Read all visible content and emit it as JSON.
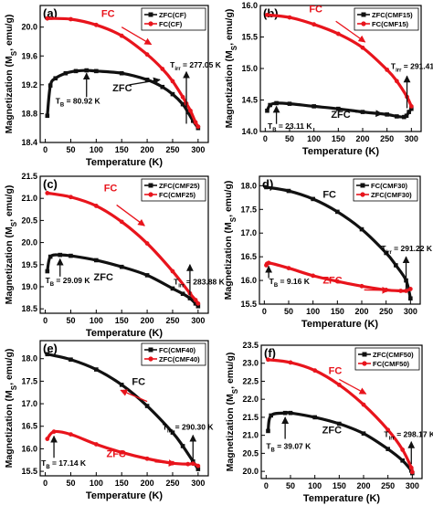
{
  "colors": {
    "zfc": "#111111",
    "fc": "#e8141c",
    "axis": "#000000"
  },
  "chart_data": [
    {
      "type": "scatter",
      "panel_label": "(a)",
      "xlabel": "Temperature (K)",
      "ylabel": "Magnetization (M_S, emu/g)",
      "ylabel_parts": {
        "pre": "Magnetization (M",
        "sub": "S",
        "post": ", emu/g)"
      },
      "xlim": [
        -10,
        320
      ],
      "ylim": [
        18.4,
        20.3
      ],
      "xticks": [
        0,
        50,
        100,
        150,
        200,
        250,
        300
      ],
      "yticks": [
        18.4,
        18.8,
        19.2,
        19.6,
        20.0
      ],
      "legend": {
        "position": "top-right",
        "entries": [
          {
            "series": "zfc",
            "label": "ZFC(CF)"
          },
          {
            "series": "fc",
            "label": "FC(CF)"
          }
        ]
      },
      "series": [
        {
          "name": "ZFC(CF)",
          "key": "zfc",
          "x": [
            4,
            10,
            20,
            40,
            60,
            81,
            100,
            150,
            200,
            230,
            250,
            270,
            280,
            290,
            300
          ],
          "y": [
            18.77,
            19.19,
            19.29,
            19.36,
            19.39,
            19.4,
            19.39,
            19.36,
            19.27,
            19.17,
            19.07,
            18.93,
            18.82,
            18.7,
            18.6
          ]
        },
        {
          "name": "FC(CF)",
          "key": "fc",
          "x": [
            4,
            50,
            100,
            150,
            200,
            230,
            250,
            270,
            277,
            285,
            295,
            300
          ],
          "y": [
            20.12,
            20.11,
            20.03,
            19.88,
            19.62,
            19.42,
            19.25,
            19.03,
            18.94,
            18.84,
            18.68,
            18.62
          ]
        }
      ],
      "annotations": [
        {
          "text": "FC",
          "color": "fc",
          "x": 110,
          "y": 20.14
        },
        {
          "text": "ZFC",
          "color": "zfc",
          "x": 132,
          "y": 19.11
        },
        {
          "text": "T_B = 80.92 K",
          "parts": [
            "T",
            "B",
            " = 80.92 K"
          ],
          "x": 20,
          "y": 18.94
        },
        {
          "text": "T_irr = 277.05 K",
          "parts": [
            "T",
            "irr",
            " = 277.05 K"
          ],
          "x": 245,
          "y": 19.44
        }
      ],
      "arrows": [
        {
          "color": "zfc",
          "from": [
            81,
            19.03
          ],
          "to": [
            81,
            19.36
          ]
        },
        {
          "color": "zfc",
          "from": [
            277,
            18.66
          ],
          "to": [
            277,
            19.38
          ]
        },
        {
          "color": "zfc",
          "from": [
            165,
            19.2
          ],
          "to": [
            225,
            19.27
          ]
        },
        {
          "color": "fc",
          "from": [
            150,
            20.0
          ],
          "to": [
            208,
            19.76
          ]
        }
      ]
    },
    {
      "type": "scatter",
      "panel_label": "(b)",
      "xlabel": "Temperature (K)",
      "ylabel": "Magnetization (M_S, emu/g)",
      "ylabel_parts": {
        "pre": "Magnetization (M",
        "sub": "S",
        "post": ", emu/g)"
      },
      "xlim": [
        -10,
        320
      ],
      "ylim": [
        14.0,
        16.0
      ],
      "xticks": [
        0,
        50,
        100,
        150,
        200,
        250,
        300
      ],
      "yticks": [
        14.0,
        14.5,
        15.0,
        15.5,
        16.0
      ],
      "legend": {
        "position": "top-right",
        "entries": [
          {
            "series": "zfc",
            "label": "ZFC(CMF15)"
          },
          {
            "series": "fc",
            "label": "FC(CMF15)"
          }
        ]
      },
      "series": [
        {
          "name": "ZFC(CMF15)",
          "key": "zfc",
          "x": [
            4,
            10,
            23,
            50,
            100,
            150,
            200,
            250,
            270,
            285,
            290,
            295,
            300
          ],
          "y": [
            14.33,
            14.42,
            14.45,
            14.44,
            14.4,
            14.36,
            14.31,
            14.27,
            14.24,
            14.23,
            14.25,
            14.31,
            14.36
          ]
        },
        {
          "name": "FC(CMF15)",
          "key": "fc",
          "x": [
            4,
            50,
            100,
            150,
            200,
            250,
            270,
            291,
            300
          ],
          "y": [
            15.85,
            15.81,
            15.7,
            15.55,
            15.33,
            14.98,
            14.8,
            14.55,
            14.4
          ]
        }
      ],
      "annotations": [
        {
          "text": "FC",
          "color": "fc",
          "x": 90,
          "y": 15.89
        },
        {
          "text": "ZFC",
          "color": "zfc",
          "x": 135,
          "y": 14.22
        },
        {
          "text": "T_B = 23.11 K",
          "parts": [
            "T",
            "B",
            " = 23.11 K"
          ],
          "x": 5,
          "y": 14.04
        },
        {
          "text": "T_irr = 291.41 K",
          "parts": [
            "T",
            "irr",
            " = 291.41 K"
          ],
          "x": 258,
          "y": 14.99
        }
      ],
      "arrows": [
        {
          "color": "zfc",
          "from": [
            23,
            14.12
          ],
          "to": [
            23,
            14.4
          ]
        },
        {
          "color": "zfc",
          "from": [
            291,
            14.37
          ],
          "to": [
            291,
            14.88
          ]
        },
        {
          "color": "zfc",
          "from": [
            185,
            14.31
          ],
          "to": [
            240,
            14.28
          ]
        },
        {
          "color": "fc",
          "from": [
            145,
            15.75
          ],
          "to": [
            205,
            15.42
          ]
        }
      ]
    },
    {
      "type": "scatter",
      "panel_label": "(c)",
      "xlabel": "Temperature (K)",
      "ylabel": "Magnetization (M_S, emu/g)",
      "ylabel_parts": {
        "pre": "Magnetization (M",
        "sub": "S",
        "post": ", emu/g)"
      },
      "xlim": [
        -10,
        320
      ],
      "ylim": [
        18.4,
        21.5
      ],
      "xticks": [
        0,
        50,
        100,
        150,
        200,
        250,
        300
      ],
      "yticks": [
        18.5,
        19.0,
        19.5,
        20.0,
        20.5,
        21.0,
        21.5
      ],
      "legend": {
        "position": "top-right",
        "entries": [
          {
            "series": "zfc",
            "label": "ZFC(CMF25)"
          },
          {
            "series": "fc",
            "label": "FC(CMF25)"
          }
        ]
      },
      "series": [
        {
          "name": "ZFC(CMF25)",
          "key": "zfc",
          "x": [
            4,
            10,
            29,
            50,
            100,
            150,
            200,
            250,
            270,
            284,
            295,
            300
          ],
          "y": [
            19.35,
            19.68,
            19.72,
            19.7,
            19.6,
            19.45,
            19.26,
            18.96,
            18.84,
            18.74,
            18.62,
            18.56
          ]
        },
        {
          "name": "FC(CMF25)",
          "key": "fc",
          "x": [
            4,
            50,
            100,
            150,
            200,
            250,
            284,
            295,
            300
          ],
          "y": [
            21.12,
            21.03,
            20.83,
            20.47,
            19.98,
            19.35,
            18.85,
            18.7,
            18.62
          ]
        }
      ],
      "annotations": [
        {
          "text": "FC",
          "color": "fc",
          "x": 115,
          "y": 21.16
        },
        {
          "text": "ZFC",
          "color": "zfc",
          "x": 95,
          "y": 19.14
        },
        {
          "text": "T_B = 29.09 K",
          "parts": [
            "T",
            "B",
            " = 29.09 K"
          ],
          "x": 0,
          "y": 19.08
        },
        {
          "text": "T_irr = 283.88 K",
          "parts": [
            "T",
            "irr",
            " = 283.88 K"
          ],
          "x": 252,
          "y": 19.05
        }
      ],
      "arrows": [
        {
          "color": "zfc",
          "from": [
            29,
            19.23
          ],
          "to": [
            29,
            19.63
          ]
        },
        {
          "color": "zfc",
          "from": [
            284,
            18.8
          ],
          "to": [
            284,
            19.5
          ]
        },
        {
          "color": "fc",
          "from": [
            140,
            20.85
          ],
          "to": [
            195,
            20.38
          ]
        }
      ]
    },
    {
      "type": "scatter",
      "panel_label": "d)",
      "xlabel": "Temperature (K)",
      "ylabel": "Magnetization (M_S, emu/g)",
      "ylabel_parts": {
        "pre": "Magnetization (M",
        "sub": "S",
        "post": ", emu/g)"
      },
      "xlim": [
        -10,
        320
      ],
      "ylim": [
        15.5,
        18.2
      ],
      "xticks": [
        0,
        50,
        100,
        150,
        200,
        250,
        300
      ],
      "yticks": [
        15.5,
        16.0,
        16.5,
        17.0,
        17.5,
        18.0
      ],
      "legend": {
        "position": "top-right",
        "entries": [
          {
            "series": "zfc",
            "label": "FC(CMF30)"
          },
          {
            "series": "fc",
            "label": "ZFC(CMF30)"
          }
        ]
      },
      "series": [
        {
          "name": "FC(CMF30)",
          "key": "zfc",
          "x": [
            4,
            50,
            100,
            150,
            200,
            250,
            270,
            291,
            300
          ],
          "y": [
            17.97,
            17.89,
            17.72,
            17.45,
            17.08,
            16.58,
            16.32,
            16.0,
            15.62
          ]
        },
        {
          "name": "ZFC(CMF30)",
          "key": "fc",
          "x": [
            4,
            9,
            50,
            100,
            150,
            200,
            250,
            280,
            291,
            300
          ],
          "y": [
            16.32,
            16.37,
            16.26,
            16.1,
            15.98,
            15.88,
            15.8,
            15.78,
            15.78,
            15.82
          ]
        }
      ],
      "annotations": [
        {
          "text": "FC",
          "color": "zfc",
          "x": 120,
          "y": 17.75
        },
        {
          "text": "ZFC",
          "color": "fc",
          "x": 120,
          "y": 15.93
        },
        {
          "text": "T_B = 9.16 K",
          "parts": [
            "T",
            "B",
            " = 9.16 K"
          ],
          "x": 10,
          "y": 15.92
        },
        {
          "text": "T_irr = 291.22 K",
          "parts": [
            "T",
            "irr",
            " = 291.22 K"
          ],
          "x": 240,
          "y": 16.62
        }
      ],
      "arrows": [
        {
          "color": "zfc",
          "from": [
            9,
            16.05
          ],
          "to": [
            9,
            16.3
          ]
        },
        {
          "color": "zfc",
          "from": [
            291,
            15.82
          ],
          "to": [
            291,
            16.5
          ]
        },
        {
          "color": "fc",
          "from": [
            205,
            15.8
          ],
          "to": [
            255,
            15.79
          ]
        }
      ]
    },
    {
      "type": "scatter",
      "panel_label": "(e)",
      "xlabel": "Temperature (K)",
      "ylabel": "Magnetization (M_S, emu/g)",
      "ylabel_parts": {
        "pre": "Magnetization (M",
        "sub": "S",
        "post": ", emu/g)"
      },
      "xlim": [
        -10,
        320
      ],
      "ylim": [
        15.4,
        18.4
      ],
      "xticks": [
        0,
        50,
        100,
        150,
        200,
        250,
        300
      ],
      "yticks": [
        15.5,
        16.0,
        16.5,
        17.0,
        17.5,
        18.0
      ],
      "legend": {
        "position": "top-right",
        "entries": [
          {
            "series": "zfc",
            "label": "FC(CMF40)"
          },
          {
            "series": "fc",
            "label": "ZFC(CMF40)"
          }
        ]
      },
      "series": [
        {
          "name": "FC(CMF40)",
          "key": "zfc",
          "x": [
            4,
            50,
            100,
            150,
            200,
            250,
            270,
            290,
            300
          ],
          "y": [
            18.1,
            17.98,
            17.76,
            17.42,
            16.95,
            16.36,
            16.06,
            15.72,
            15.55
          ]
        },
        {
          "name": "ZFC(CMF40)",
          "key": "fc",
          "x": [
            4,
            17,
            50,
            100,
            150,
            200,
            250,
            280,
            290,
            300
          ],
          "y": [
            16.22,
            16.38,
            16.32,
            16.1,
            15.92,
            15.78,
            15.68,
            15.66,
            15.67,
            15.62
          ]
        }
      ],
      "annotations": [
        {
          "text": "FC",
          "color": "zfc",
          "x": 170,
          "y": 17.42
        },
        {
          "text": "ZFC",
          "color": "fc",
          "x": 120,
          "y": 15.82
        },
        {
          "text": "T_B = 17.14 K",
          "parts": [
            "T",
            "B",
            " = 17.14 K"
          ],
          "x": -8,
          "y": 15.62
        },
        {
          "text": "T_irr = 290.30 K",
          "parts": [
            "T",
            "irr",
            " = 290.30 K"
          ],
          "x": 230,
          "y": 16.42
        }
      ],
      "arrows": [
        {
          "color": "zfc",
          "from": [
            17,
            15.8
          ],
          "to": [
            17,
            16.28
          ]
        },
        {
          "color": "zfc",
          "from": [
            290,
            15.74
          ],
          "to": [
            290,
            16.3
          ]
        },
        {
          "color": "fc",
          "from": [
            200,
            17.05
          ],
          "to": [
            148,
            17.3
          ]
        },
        {
          "color": "fc",
          "from": [
            215,
            15.71
          ],
          "to": [
            255,
            15.67
          ]
        }
      ]
    },
    {
      "type": "scatter",
      "panel_label": "(f)",
      "xlabel": "Temperature (K)",
      "ylabel": "Magnetization (M_S, emu/g)",
      "ylabel_parts": {
        "pre": "Magnetization (M",
        "sub": "S",
        "post": ", emu/g)"
      },
      "xlim": [
        -10,
        320
      ],
      "ylim": [
        19.8,
        23.5
      ],
      "xticks": [
        0,
        50,
        100,
        150,
        200,
        250,
        300
      ],
      "yticks": [
        20.0,
        20.5,
        21.0,
        21.5,
        22.0,
        22.5,
        23.0,
        23.5
      ],
      "legend": {
        "position": "top-right",
        "entries": [
          {
            "series": "zfc",
            "label": "ZFC(CMF50)"
          },
          {
            "series": "fc",
            "label": "FC(CMF50)"
          }
        ]
      },
      "series": [
        {
          "name": "ZFC(CMF50)",
          "key": "zfc",
          "x": [
            4,
            10,
            39,
            50,
            100,
            150,
            200,
            250,
            280,
            298,
            300
          ],
          "y": [
            21.12,
            21.55,
            21.62,
            21.62,
            21.5,
            21.32,
            21.05,
            20.62,
            20.3,
            20.02,
            19.95
          ]
        },
        {
          "name": "FC(CMF50)",
          "key": "fc",
          "x": [
            4,
            50,
            100,
            150,
            200,
            250,
            280,
            298,
            300
          ],
          "y": [
            23.1,
            23.02,
            22.8,
            22.4,
            21.85,
            21.15,
            20.6,
            20.1,
            19.98
          ]
        }
      ],
      "annotations": [
        {
          "text": "FC",
          "color": "fc",
          "x": 128,
          "y": 22.7
        },
        {
          "text": "ZFC",
          "color": "zfc",
          "x": 115,
          "y": 21.05
        },
        {
          "text": "T_B = 39.07 K",
          "parts": [
            "T",
            "B",
            " = 39.07 K"
          ],
          "x": 0,
          "y": 20.62
        },
        {
          "text": "T_irr = 298.17 K",
          "parts": [
            "T",
            "irr",
            " = 298.17 K"
          ],
          "x": 242,
          "y": 20.95
        }
      ],
      "arrows": [
        {
          "color": "zfc",
          "from": [
            39,
            20.9
          ],
          "to": [
            39,
            21.5
          ]
        },
        {
          "color": "zfc",
          "from": [
            298,
            20.2
          ],
          "to": [
            298,
            20.82
          ]
        },
        {
          "color": "fc",
          "from": [
            150,
            22.55
          ],
          "to": [
            205,
            22.15
          ]
        }
      ]
    }
  ]
}
